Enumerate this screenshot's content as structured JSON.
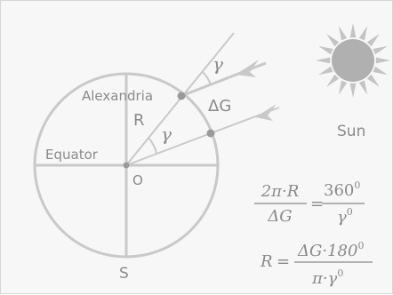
{
  "labels": {
    "city": "Alexandria",
    "radius": "R",
    "delta_g": "ΔG",
    "gamma_top": "γ",
    "gamma_center": "γ",
    "equator": "Equator",
    "center": "O",
    "south": "S",
    "sun": "Sun"
  },
  "formula1": {
    "lhs_num": "2π·R",
    "lhs_den": "ΔG",
    "equals": "=",
    "rhs_num": "360",
    "rhs_num_sup": "0",
    "rhs_den": "γ",
    "rhs_den_sup": "0"
  },
  "formula2": {
    "lhs": "R",
    "equals": "=",
    "num": "ΔG·180",
    "num_sup": "0",
    "den": "π·γ",
    "den_sup": "0"
  },
  "colors": {
    "stroke": "#c9c9c9",
    "text": "#8a8a8a",
    "dot": "#9a9a9a",
    "sun_core": "#b0b0b0"
  }
}
